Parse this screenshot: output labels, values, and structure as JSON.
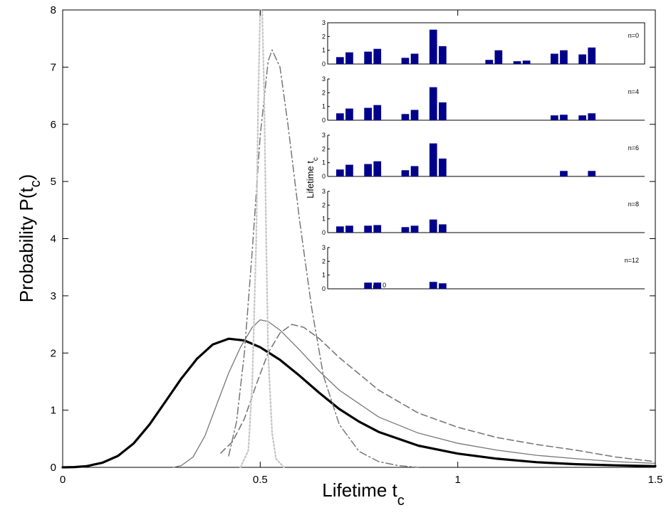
{
  "chart_data": [
    {
      "type": "line",
      "xlabel": "Lifetime t",
      "xlabel_sub": "c",
      "ylabel": "Probability P(t",
      "ylabel_sub": "c",
      "ylabel_close": ")",
      "xlim": [
        0,
        1.5
      ],
      "ylim": [
        0,
        8
      ],
      "xticks": [
        0,
        0.5,
        1,
        1.5
      ],
      "yticks": [
        0,
        1,
        2,
        3,
        4,
        5,
        6,
        7,
        8
      ],
      "grid": false,
      "series": [
        {
          "style": "thick-solid",
          "color": "#000000",
          "points": [
            [
              0.0,
              0
            ],
            [
              0.03,
              0.005
            ],
            [
              0.06,
              0.02
            ],
            [
              0.1,
              0.08
            ],
            [
              0.14,
              0.2
            ],
            [
              0.18,
              0.42
            ],
            [
              0.22,
              0.75
            ],
            [
              0.26,
              1.15
            ],
            [
              0.3,
              1.55
            ],
            [
              0.34,
              1.9
            ],
            [
              0.38,
              2.15
            ],
            [
              0.42,
              2.25
            ],
            [
              0.46,
              2.22
            ],
            [
              0.5,
              2.1
            ],
            [
              0.55,
              1.88
            ],
            [
              0.6,
              1.6
            ],
            [
              0.65,
              1.3
            ],
            [
              0.7,
              1.02
            ],
            [
              0.75,
              0.8
            ],
            [
              0.8,
              0.62
            ],
            [
              0.9,
              0.38
            ],
            [
              1.0,
              0.24
            ],
            [
              1.1,
              0.15
            ],
            [
              1.2,
              0.09
            ],
            [
              1.3,
              0.055
            ],
            [
              1.4,
              0.035
            ],
            [
              1.5,
              0.02
            ]
          ]
        },
        {
          "style": "thin-solid",
          "color": "#777777",
          "points": [
            [
              0.28,
              0
            ],
            [
              0.3,
              0.03
            ],
            [
              0.33,
              0.18
            ],
            [
              0.36,
              0.55
            ],
            [
              0.39,
              1.1
            ],
            [
              0.42,
              1.65
            ],
            [
              0.45,
              2.1
            ],
            [
              0.48,
              2.45
            ],
            [
              0.5,
              2.58
            ],
            [
              0.52,
              2.55
            ],
            [
              0.55,
              2.4
            ],
            [
              0.6,
              2.05
            ],
            [
              0.65,
              1.68
            ],
            [
              0.7,
              1.35
            ],
            [
              0.8,
              0.88
            ],
            [
              0.9,
              0.6
            ],
            [
              1.0,
              0.42
            ],
            [
              1.1,
              0.3
            ],
            [
              1.2,
              0.21
            ],
            [
              1.3,
              0.15
            ],
            [
              1.4,
              0.1
            ],
            [
              1.5,
              0.07
            ]
          ]
        },
        {
          "style": "dashed",
          "color": "#777777",
          "points": [
            [
              0.4,
              0.25
            ],
            [
              0.43,
              0.45
            ],
            [
              0.46,
              0.85
            ],
            [
              0.49,
              1.45
            ],
            [
              0.52,
              2.0
            ],
            [
              0.55,
              2.35
            ],
            [
              0.58,
              2.5
            ],
            [
              0.61,
              2.45
            ],
            [
              0.65,
              2.25
            ],
            [
              0.7,
              1.92
            ],
            [
              0.8,
              1.35
            ],
            [
              0.9,
              0.95
            ],
            [
              1.0,
              0.7
            ],
            [
              1.1,
              0.52
            ],
            [
              1.2,
              0.4
            ],
            [
              1.3,
              0.3
            ],
            [
              1.4,
              0.18
            ],
            [
              1.5,
              0.1
            ]
          ]
        },
        {
          "style": "dash-dot",
          "color": "#777777",
          "points": [
            [
              0.42,
              0.2
            ],
            [
              0.44,
              0.8
            ],
            [
              0.46,
              2.0
            ],
            [
              0.48,
              3.8
            ],
            [
              0.5,
              5.8
            ],
            [
              0.52,
              7.1
            ],
            [
              0.53,
              7.3
            ],
            [
              0.55,
              7.0
            ],
            [
              0.57,
              6.0
            ],
            [
              0.6,
              4.3
            ],
            [
              0.63,
              2.8
            ],
            [
              0.66,
              1.6
            ],
            [
              0.7,
              0.75
            ],
            [
              0.75,
              0.28
            ],
            [
              0.8,
              0.1
            ],
            [
              0.85,
              0.03
            ],
            [
              0.9,
              0
            ]
          ]
        },
        {
          "style": "dotted",
          "color": "#c8c8c8",
          "points": [
            [
              0.45,
              0
            ],
            [
              0.47,
              0.3
            ],
            [
              0.48,
              1.5
            ],
            [
              0.49,
              4.0
            ],
            [
              0.495,
              6.5
            ],
            [
              0.5,
              8.0
            ],
            [
              0.505,
              8.0
            ],
            [
              0.51,
              6.5
            ],
            [
              0.515,
              4.0
            ],
            [
              0.52,
              2.0
            ],
            [
              0.53,
              0.6
            ],
            [
              0.54,
              0.15
            ],
            [
              0.56,
              0
            ]
          ]
        }
      ]
    },
    {
      "type": "bar",
      "ylabel": "Lifetime t",
      "ylabel_sub": "c",
      "x_tick_label": "0",
      "yticks": [
        0,
        1,
        2,
        3
      ],
      "ylim": [
        0,
        3
      ],
      "bar_color": "#00008b",
      "bar_slots": 34,
      "panels": [
        {
          "label": "n=0",
          "values": [
            0.5,
            0.85,
            0,
            0.9,
            1.1,
            0,
            0,
            0.45,
            0.75,
            0,
            2.5,
            1.3,
            0,
            0,
            0,
            0,
            0.3,
            1.0,
            0,
            0.2,
            0.25,
            0,
            0,
            0.75,
            1.0,
            0,
            0.7,
            1.2
          ]
        },
        {
          "label": "n=4",
          "values": [
            0.5,
            0.85,
            0,
            0.9,
            1.1,
            0,
            0,
            0.45,
            0.75,
            0,
            2.4,
            1.3,
            0,
            0,
            0,
            0,
            0,
            0,
            0,
            0,
            0,
            0,
            0,
            0.35,
            0.4,
            0,
            0.35,
            0.5
          ]
        },
        {
          "label": "n=6",
          "values": [
            0.5,
            0.85,
            0,
            0.9,
            1.1,
            0,
            0,
            0.45,
            0.75,
            0,
            2.4,
            1.3,
            0,
            0,
            0,
            0,
            0,
            0,
            0,
            0,
            0,
            0,
            0,
            0,
            0.4,
            0,
            0,
            0.4
          ]
        },
        {
          "label": "n=8",
          "values": [
            0.45,
            0.5,
            0,
            0.5,
            0.55,
            0,
            0,
            0.4,
            0.5,
            0,
            0.95,
            0.6,
            0,
            0,
            0,
            0,
            0,
            0,
            0,
            0,
            0,
            0,
            0,
            0,
            0,
            0,
            0,
            0
          ]
        },
        {
          "label": "n=12",
          "values": [
            0,
            0,
            0,
            0.45,
            0.45,
            0,
            0,
            0,
            0,
            0,
            0.5,
            0.4,
            0,
            0,
            0,
            0,
            0,
            0,
            0,
            0,
            0,
            0,
            0,
            0,
            0,
            0,
            0,
            0
          ]
        }
      ]
    }
  ]
}
